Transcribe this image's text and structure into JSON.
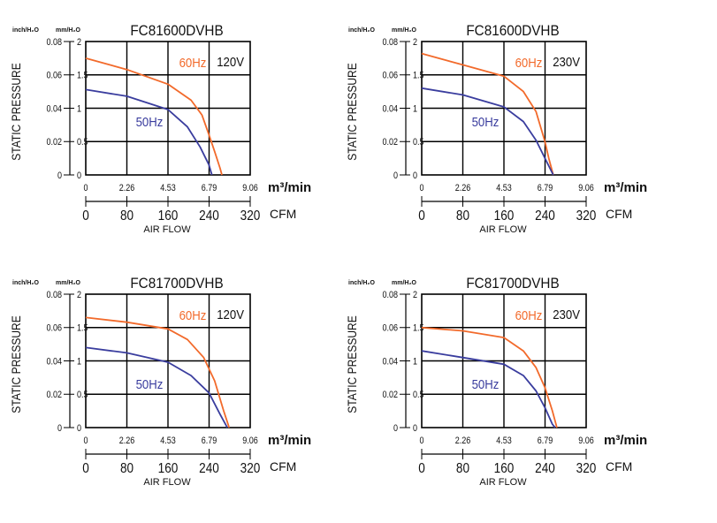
{
  "colors": {
    "hz60": "#f26a2b",
    "hz50": "#3a3d9e",
    "grid": "#000000"
  },
  "chart_data": [
    {
      "type": "line",
      "title": "FC81600DVHB",
      "voltage": "120V",
      "ylabel": "STATIC PRESSURE",
      "y_unit_inch": "inch/H₂O",
      "y_unit_mm": "mm/H₂O",
      "x_unit_m3": "m³/min",
      "x_unit_cfm": "CFM",
      "xlabel": "AIR FLOW",
      "xlim": [
        0,
        9.06
      ],
      "ylim": [
        0,
        2
      ],
      "x_ticks_m3": [
        "0",
        "2.26",
        "4.53",
        "6.79",
        "9.06"
      ],
      "x_ticks_cfm": [
        "0",
        "80",
        "160",
        "240",
        "320"
      ],
      "y_ticks_inch": [
        "0",
        "0.02",
        "0.04",
        "0.06",
        "0.08"
      ],
      "y_ticks_mm": [
        "0",
        "0.5",
        "1",
        "1.5",
        "2"
      ],
      "series": [
        {
          "name": "60Hz",
          "points": [
            [
              0,
              1.75
            ],
            [
              2.26,
              1.58
            ],
            [
              4.53,
              1.36
            ],
            [
              5.8,
              1.12
            ],
            [
              6.4,
              0.9
            ],
            [
              6.79,
              0.6
            ],
            [
              7.1,
              0.35
            ],
            [
              7.4,
              0.1
            ],
            [
              7.5,
              0
            ]
          ]
        },
        {
          "name": "50Hz",
          "points": [
            [
              0,
              1.28
            ],
            [
              2.26,
              1.18
            ],
            [
              4.53,
              0.98
            ],
            [
              5.6,
              0.72
            ],
            [
              6.3,
              0.42
            ],
            [
              6.79,
              0.15
            ],
            [
              6.95,
              0
            ]
          ]
        }
      ]
    },
    {
      "type": "line",
      "title": "FC81600DVHB",
      "voltage": "230V",
      "ylabel": "STATIC PRESSURE",
      "y_unit_inch": "inch/H₂O",
      "y_unit_mm": "mm/H₂O",
      "x_unit_m3": "m³/min",
      "x_unit_cfm": "CFM",
      "xlabel": "AIR FLOW",
      "xlim": [
        0,
        9.06
      ],
      "ylim": [
        0,
        2
      ],
      "x_ticks_m3": [
        "0",
        "2.26",
        "4.53",
        "6.79",
        "9.06"
      ],
      "x_ticks_cfm": [
        "0",
        "80",
        "160",
        "240",
        "320"
      ],
      "y_ticks_inch": [
        "0",
        "0.02",
        "0.04",
        "0.06",
        "0.08"
      ],
      "y_ticks_mm": [
        "0",
        "0.5",
        "1",
        "1.5",
        "2"
      ],
      "series": [
        {
          "name": "60Hz",
          "points": [
            [
              0,
              1.82
            ],
            [
              2.26,
              1.65
            ],
            [
              4.53,
              1.48
            ],
            [
              5.6,
              1.25
            ],
            [
              6.3,
              0.95
            ],
            [
              6.79,
              0.5
            ],
            [
              7.0,
              0.25
            ],
            [
              7.25,
              0
            ]
          ]
        },
        {
          "name": "50Hz",
          "points": [
            [
              0,
              1.3
            ],
            [
              2.26,
              1.2
            ],
            [
              4.53,
              1.02
            ],
            [
              5.6,
              0.8
            ],
            [
              6.3,
              0.52
            ],
            [
              6.79,
              0.25
            ],
            [
              7.25,
              0
            ]
          ]
        }
      ]
    },
    {
      "type": "line",
      "title": "FC81700DVHB",
      "voltage": "120V",
      "ylabel": "STATIC PRESSURE",
      "y_unit_inch": "inch/H₂O",
      "y_unit_mm": "mm/H₂O",
      "x_unit_m3": "m³/min",
      "x_unit_cfm": "CFM",
      "xlabel": "AIR FLOW",
      "xlim": [
        0,
        9.06
      ],
      "ylim": [
        0,
        2
      ],
      "x_ticks_m3": [
        "0",
        "2.26",
        "4.53",
        "6.79",
        "9.06"
      ],
      "x_ticks_cfm": [
        "0",
        "80",
        "160",
        "240",
        "320"
      ],
      "y_ticks_inch": [
        "0",
        "0.02",
        "0.04",
        "0.06",
        "0.08"
      ],
      "y_ticks_mm": [
        "0",
        "0.5",
        "1",
        "1.5",
        "2"
      ],
      "series": [
        {
          "name": "60Hz",
          "points": [
            [
              0,
              1.65
            ],
            [
              2.26,
              1.58
            ],
            [
              4.53,
              1.48
            ],
            [
              5.6,
              1.32
            ],
            [
              6.5,
              1.05
            ],
            [
              7.1,
              0.7
            ],
            [
              7.6,
              0.25
            ],
            [
              7.9,
              0
            ]
          ]
        },
        {
          "name": "50Hz",
          "points": [
            [
              0,
              1.2
            ],
            [
              2.26,
              1.12
            ],
            [
              4.53,
              0.98
            ],
            [
              5.8,
              0.78
            ],
            [
              6.79,
              0.52
            ],
            [
              7.4,
              0.2
            ],
            [
              7.8,
              0
            ]
          ]
        }
      ]
    },
    {
      "type": "line",
      "title": "FC81700DVHB",
      "voltage": "230V",
      "ylabel": "STATIC PRESSURE",
      "y_unit_inch": "inch/H₂O",
      "y_unit_mm": "mm/H₂O",
      "x_unit_m3": "m³/min",
      "x_unit_cfm": "CFM",
      "xlabel": "AIR FLOW",
      "xlim": [
        0,
        9.06
      ],
      "ylim": [
        0,
        2
      ],
      "x_ticks_m3": [
        "0",
        "2.26",
        "4.53",
        "6.79",
        "9.06"
      ],
      "x_ticks_cfm": [
        "0",
        "80",
        "160",
        "240",
        "320"
      ],
      "y_ticks_inch": [
        "0",
        "0.02",
        "0.04",
        "0.06",
        "0.08"
      ],
      "y_ticks_mm": [
        "0",
        "0.5",
        "1",
        "1.5",
        "2"
      ],
      "series": [
        {
          "name": "60Hz",
          "points": [
            [
              0,
              1.5
            ],
            [
              2.26,
              1.45
            ],
            [
              4.53,
              1.35
            ],
            [
              5.6,
              1.15
            ],
            [
              6.3,
              0.9
            ],
            [
              6.79,
              0.6
            ],
            [
              7.2,
              0.25
            ],
            [
              7.45,
              0
            ]
          ]
        },
        {
          "name": "50Hz",
          "points": [
            [
              0,
              1.15
            ],
            [
              2.26,
              1.05
            ],
            [
              4.53,
              0.95
            ],
            [
              5.6,
              0.78
            ],
            [
              6.3,
              0.55
            ],
            [
              6.79,
              0.3
            ],
            [
              7.2,
              0.05
            ],
            [
              7.35,
              0
            ]
          ]
        }
      ]
    }
  ]
}
